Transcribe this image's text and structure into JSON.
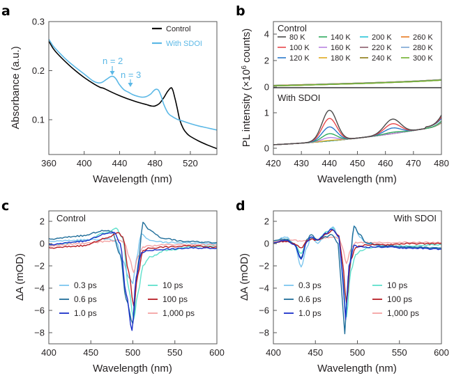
{
  "chart_data": [
    {
      "panel": "a",
      "type": "line",
      "title": "",
      "xlabel": "Wavelength (nm)",
      "ylabel": "Absorbance (a.u.)",
      "xlim": [
        360,
        550
      ],
      "ylim": [
        0.03,
        0.3
      ],
      "xticks": [
        360,
        400,
        440,
        480,
        520
      ],
      "yticks": [
        0.1,
        0.2,
        0.3
      ],
      "ytick_labels": [
        "0.1",
        "0.2",
        "0.3"
      ],
      "legend_position": "top-right",
      "series": [
        {
          "name": "Control",
          "color": "#000000",
          "x": [
            360,
            365,
            370,
            380,
            390,
            400,
            410,
            418,
            422,
            430,
            440,
            450,
            460,
            470,
            476,
            480,
            485,
            490,
            494,
            498,
            500,
            502,
            505,
            508,
            512,
            516,
            520,
            530,
            540,
            550
          ],
          "y": [
            0.26,
            0.245,
            0.234,
            0.216,
            0.2,
            0.186,
            0.174,
            0.166,
            0.164,
            0.157,
            0.149,
            0.142,
            0.136,
            0.131,
            0.128,
            0.128,
            0.133,
            0.145,
            0.157,
            0.165,
            0.161,
            0.148,
            0.125,
            0.1,
            0.082,
            0.072,
            0.066,
            0.056,
            0.048,
            0.041
          ]
        },
        {
          "name": "With SDOI",
          "color": "#5bb8e6",
          "x": [
            360,
            365,
            370,
            380,
            390,
            400,
            410,
            416,
            420,
            425,
            430,
            433,
            436,
            440,
            445,
            450,
            455,
            460,
            465,
            470,
            475,
            478,
            481,
            484,
            487,
            490,
            495,
            500,
            505,
            510,
            520,
            530,
            540,
            550
          ],
          "y": [
            0.264,
            0.25,
            0.24,
            0.222,
            0.207,
            0.193,
            0.179,
            0.175,
            0.176,
            0.182,
            0.188,
            0.188,
            0.183,
            0.171,
            0.161,
            0.156,
            0.151,
            0.148,
            0.146,
            0.147,
            0.152,
            0.158,
            0.162,
            0.16,
            0.148,
            0.131,
            0.113,
            0.106,
            0.101,
            0.098,
            0.092,
            0.087,
            0.083,
            0.079
          ]
        }
      ],
      "annotations": [
        {
          "text": "n = 2",
          "x": 432,
          "y": 0.188,
          "arrow": "down"
        },
        {
          "text": "n = 3",
          "x": 450,
          "y": 0.156,
          "arrow": "down"
        }
      ]
    },
    {
      "panel": "b",
      "type": "line",
      "xlabel": "Wavelength (nm)",
      "ylabel": "PL intensity (×10⁶ counts)",
      "xlim": [
        420,
        480
      ],
      "xticks": [
        420,
        430,
        440,
        450,
        460,
        470,
        480
      ],
      "subplots": [
        {
          "label": "Control",
          "ylim": [
            -0.2,
            5
          ],
          "yticks": [
            0,
            2,
            4
          ],
          "series_note": "All temperatures overlap as a nearly flat baseline",
          "baseline_x": [
            420,
            430,
            440,
            450,
            460,
            470,
            480
          ],
          "baseline_y": [
            0.12,
            0.17,
            0.23,
            0.29,
            0.36,
            0.44,
            0.55
          ]
        },
        {
          "label": "With SDOI",
          "ylim": [
            -0.15,
            1.6
          ],
          "yticks": [
            0,
            1
          ],
          "peaks_nm": [
            440,
            462.5
          ]
        }
      ],
      "legend": [
        {
          "label": "80 K",
          "color": "#4a4a4a"
        },
        {
          "label": "100 K",
          "color": "#e8474b"
        },
        {
          "label": "120 K",
          "color": "#2a78c9"
        },
        {
          "label": "140 K",
          "color": "#2eaa5e"
        },
        {
          "label": "160 K",
          "color": "#b784e0"
        },
        {
          "label": "180 K",
          "color": "#e0a81d"
        },
        {
          "label": "200 K",
          "color": "#27c4d8"
        },
        {
          "label": "220 K",
          "color": "#8a5d6b"
        },
        {
          "label": "240 K",
          "color": "#8c7a10"
        },
        {
          "label": "260 K",
          "color": "#e8781e"
        },
        {
          "label": "280 K",
          "color": "#7aa4d4"
        },
        {
          "label": "300 K",
          "color": "#6fb02c"
        }
      ],
      "sdoi_series": [
        {
          "temp": "80 K",
          "peak1": 1.07,
          "peak2": 0.82
        },
        {
          "temp": "100 K",
          "peak1": 0.84,
          "peak2": 0.69
        },
        {
          "temp": "120 K",
          "peak1": 0.6,
          "peak2": 0.57
        },
        {
          "temp": "140 K",
          "peak1": 0.41,
          "peak2": 0.45
        },
        {
          "temp": "160 K",
          "peak1": 0.3,
          "peak2": 0.38
        },
        {
          "temp": "180 K",
          "peak1": 0.22,
          "peak2": 0.33
        },
        {
          "temp": "200 K",
          "peak1": 0.19,
          "peak2": 0.31
        },
        {
          "temp": "220 K",
          "peak1": 0.18,
          "peak2": 0.3
        },
        {
          "temp": "240 K",
          "peak1": 0.18,
          "peak2": 0.3
        },
        {
          "temp": "260 K",
          "peak1": 0.17,
          "peak2": 0.29
        },
        {
          "temp": "280 K",
          "peak1": 0.17,
          "peak2": 0.29
        },
        {
          "temp": "300 K",
          "peak1": 0.17,
          "peak2": 0.29
        }
      ]
    },
    {
      "panel": "c",
      "type": "line",
      "inset_label": "Control",
      "xlabel": "Wavelength (nm)",
      "ylabel": "ΔA (mOD)",
      "xlim": [
        400,
        600
      ],
      "ylim": [
        -9,
        3
      ],
      "xticks": [
        400,
        450,
        500,
        550,
        600
      ],
      "yticks": [
        2,
        0,
        -2,
        -4,
        -6,
        -8
      ],
      "ytick_labels": [
        "2",
        "0",
        "−2",
        "−4",
        "−6",
        "−8"
      ],
      "series": [
        {
          "name": "0.3 ps",
          "color": "#7cc6ee",
          "x": [
            400,
            450,
            470,
            480,
            488,
            495,
            500,
            504,
            510,
            520,
            540,
            570,
            600
          ],
          "y": [
            0.2,
            0.35,
            0.4,
            0.2,
            -1.5,
            -3.0,
            -3.6,
            -1.5,
            0.9,
            0.3,
            0.1,
            0.05,
            0.0
          ]
        },
        {
          "name": "0.6 ps",
          "color": "#1f6e9a",
          "x": [
            400,
            440,
            465,
            475,
            485,
            492,
            500,
            506,
            512,
            520,
            535,
            560,
            600
          ],
          "y": [
            0.4,
            0.7,
            1.15,
            1.1,
            -1.0,
            -5.0,
            -7.2,
            -2.0,
            1.9,
            1.2,
            0.5,
            0.2,
            0.1
          ]
        },
        {
          "name": "1.0 ps",
          "color": "#1a2fc9",
          "x": [
            400,
            440,
            470,
            478,
            485,
            492,
            499,
            504,
            510,
            520,
            540,
            570,
            600
          ],
          "y": [
            -0.1,
            0.2,
            0.9,
            1.0,
            0.0,
            -4.5,
            -7.8,
            -3.0,
            -0.8,
            -0.6,
            -0.5,
            -0.4,
            -0.4
          ]
        },
        {
          "name": "10 ps",
          "color": "#5ee0cb",
          "x": [
            400,
            440,
            470,
            480,
            488,
            495,
            501,
            506,
            512,
            520,
            540,
            570,
            600
          ],
          "y": [
            -0.2,
            0.2,
            1.0,
            1.4,
            0.5,
            -4.0,
            -6.8,
            -4.5,
            -2.0,
            -1.2,
            -0.6,
            -0.3,
            -0.2
          ]
        },
        {
          "name": "100 ps",
          "color": "#b71c24",
          "x": [
            400,
            440,
            470,
            482,
            488,
            495,
            501,
            506,
            512,
            520,
            540,
            570,
            600
          ],
          "y": [
            -0.4,
            -0.2,
            0.5,
            1.0,
            0.6,
            -2.5,
            -5.6,
            -2.8,
            -0.6,
            -0.4,
            -0.3,
            -0.2,
            -0.3
          ]
        },
        {
          "name": "1,000 ps",
          "color": "#f4a3a3",
          "x": [
            400,
            440,
            470,
            482,
            490,
            496,
            501,
            506,
            512,
            520,
            540,
            570,
            600
          ],
          "y": [
            -0.2,
            0.0,
            0.2,
            0.3,
            0.1,
            -1.3,
            -2.6,
            -1.2,
            -0.3,
            -0.2,
            -0.1,
            -0.1,
            -0.1
          ]
        }
      ],
      "legend_position": "lower-middle, two columns"
    },
    {
      "panel": "d",
      "type": "line",
      "inset_label": "With SDOI",
      "xlabel": "Wavelength (nm)",
      "ylabel": "ΔA (mOD)",
      "xlim": [
        400,
        600
      ],
      "ylim": [
        -9,
        3
      ],
      "xticks": [
        400,
        450,
        500,
        550,
        600
      ],
      "yticks": [
        2,
        0,
        -2,
        -4,
        -6,
        -8
      ],
      "ytick_labels": [
        "2",
        "0",
        "−2",
        "−4",
        "−6",
        "−8"
      ],
      "series": [
        {
          "name": "0.3 ps",
          "color": "#7cc6ee",
          "x": [
            400,
            415,
            425,
            433,
            440,
            445,
            453,
            462,
            471,
            478,
            482,
            486,
            490,
            496,
            503,
            510,
            530,
            560,
            600
          ],
          "y": [
            0.2,
            0.6,
            0.0,
            -2.1,
            -0.3,
            0.6,
            0.0,
            0.8,
            1.5,
            0.5,
            -3.0,
            -6.5,
            -3.0,
            1.6,
            0.6,
            0.0,
            -0.2,
            -0.3,
            -0.4
          ]
        },
        {
          "name": "0.6 ps",
          "color": "#1f6e9a",
          "x": [
            400,
            415,
            425,
            433,
            440,
            445,
            453,
            462,
            470,
            477,
            481,
            485,
            489,
            496,
            503,
            510,
            530,
            560,
            600
          ],
          "y": [
            0.3,
            0.4,
            0.0,
            -1.3,
            0.4,
            0.8,
            0.3,
            0.6,
            0.8,
            0.0,
            -4.0,
            -8.1,
            -3.0,
            1.5,
            0.8,
            0.1,
            -0.2,
            -0.3,
            -0.4
          ]
        },
        {
          "name": "1.0 ps",
          "color": "#1a2fc9",
          "x": [
            400,
            415,
            425,
            433,
            440,
            445,
            453,
            462,
            470,
            478,
            482,
            486,
            490,
            496,
            503,
            510,
            530,
            560,
            600
          ],
          "y": [
            0.1,
            0.3,
            -0.1,
            -1.4,
            0.2,
            0.6,
            0.3,
            0.9,
            1.3,
            0.6,
            -2.5,
            -6.8,
            -2.0,
            -0.2,
            -0.3,
            -0.3,
            -0.3,
            -0.4,
            -0.5
          ]
        },
        {
          "name": "10 ps",
          "color": "#5ee0cb",
          "x": [
            400,
            415,
            425,
            433,
            440,
            445,
            453,
            462,
            471,
            478,
            482,
            487,
            492,
            498,
            505,
            512,
            530,
            560,
            600
          ],
          "y": [
            0.0,
            0.4,
            0.0,
            -0.9,
            0.2,
            0.5,
            0.3,
            1.0,
            1.4,
            0.6,
            -2.5,
            -6.6,
            -2.5,
            -1.0,
            -0.6,
            -0.4,
            -0.3,
            -0.2,
            -0.1
          ]
        },
        {
          "name": "100 ps",
          "color": "#b71c24",
          "x": [
            400,
            415,
            425,
            433,
            440,
            445,
            453,
            462,
            471,
            478,
            482,
            487,
            492,
            498,
            505,
            512,
            530,
            560,
            600
          ],
          "y": [
            0.1,
            0.2,
            0.0,
            -0.4,
            0.2,
            0.4,
            0.3,
            0.8,
            1.2,
            0.7,
            -1.5,
            -5.3,
            -1.5,
            -0.3,
            -0.2,
            -0.1,
            -0.1,
            0.0,
            0.0
          ]
        },
        {
          "name": "1,000 ps",
          "color": "#f4a3a3",
          "x": [
            400,
            415,
            425,
            433,
            440,
            445,
            453,
            462,
            471,
            478,
            482,
            487,
            492,
            498,
            505,
            512,
            530,
            560,
            600
          ],
          "y": [
            0.2,
            0.3,
            0.3,
            0.2,
            0.3,
            0.4,
            0.4,
            0.5,
            0.6,
            0.5,
            -0.3,
            -1.8,
            -0.5,
            0.1,
            0.1,
            0.1,
            0.1,
            0.1,
            0.1
          ]
        }
      ],
      "legend_position": "lower-middle, two columns"
    }
  ],
  "panels": {
    "a": {
      "label": "a",
      "legend": [
        "Control",
        "With SDOI"
      ],
      "annot_n2": "n = 2",
      "annot_n3": "n = 3"
    },
    "b": {
      "label": "b",
      "top_label": "Control",
      "bottom_label": "With SDOI"
    },
    "c": {
      "label": "c",
      "inset": "Control"
    },
    "d": {
      "label": "d",
      "inset": "With SDOI"
    }
  },
  "axis_text": {
    "wavelength": "Wavelength (nm)",
    "absorbance": "Absorbance (a.u.)",
    "pl_prefix": "PL intensity (×10",
    "pl_sup": "6",
    "pl_suffix": " counts)",
    "delta_a": "ΔA (mOD)"
  }
}
